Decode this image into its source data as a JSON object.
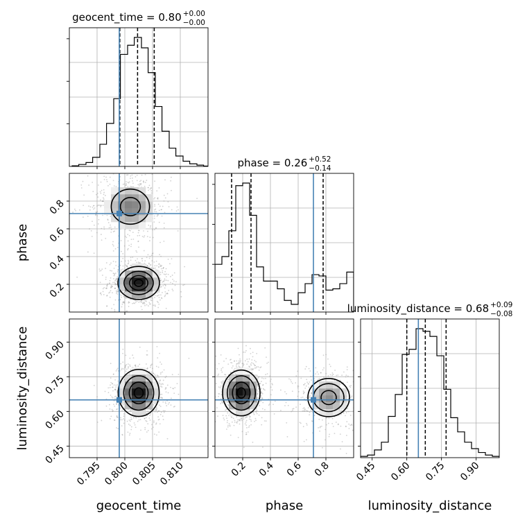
{
  "chart_data": {
    "type": "corner",
    "parameters": [
      "geocent_time",
      "phase",
      "luminosity_distance"
    ],
    "truths": {
      "geocent_time": 0.799,
      "phase": 0.71,
      "luminosity_distance": 0.65
    },
    "axes": {
      "geocent_time": {
        "label": "geocent_time",
        "range": [
          0.79,
          0.815
        ],
        "ticks": [
          "0.795",
          "0.800",
          "0.805",
          "0.810"
        ],
        "tick_values": [
          0.795,
          0.8,
          0.805,
          0.81
        ]
      },
      "phase": {
        "label": "phase",
        "range": [
          0.0,
          1.0
        ],
        "ticks": [
          "0.2",
          "0.4",
          "0.6",
          "0.8"
        ],
        "tick_values": [
          0.2,
          0.4,
          0.6,
          0.8
        ]
      },
      "luminosity_distance": {
        "label": "luminosity_distance",
        "range": [
          0.4,
          1.0
        ],
        "ticks": [
          "0.45",
          "0.60",
          "0.75",
          "0.90"
        ],
        "tick_values": [
          0.45,
          0.6,
          0.75,
          0.9
        ]
      }
    },
    "marginals": [
      {
        "parameter": "geocent_time",
        "title": {
          "name": "geocent_time",
          "median": "0.80",
          "plus": "+0.00",
          "minus": "−0.00"
        },
        "quantiles": [
          0.7991,
          0.8023,
          0.8053
        ],
        "bin_edges": [
          0.7905,
          0.7917,
          0.793,
          0.7942,
          0.7955,
          0.7967,
          0.798,
          0.7992,
          0.8005,
          0.8017,
          0.803,
          0.8042,
          0.8055,
          0.8067,
          0.808,
          0.8092,
          0.8105,
          0.8117,
          0.813,
          0.8142,
          0.815
        ],
        "counts": [
          0.005,
          0.015,
          0.03,
          0.07,
          0.17,
          0.33,
          0.52,
          0.86,
          0.93,
          0.99,
          0.91,
          0.72,
          0.46,
          0.27,
          0.14,
          0.08,
          0.04,
          0.02,
          0.01,
          0.003
        ]
      },
      {
        "parameter": "phase",
        "title": {
          "name": "phase",
          "median": "0.26",
          "plus": "+0.52",
          "minus": "−0.14"
        },
        "quantiles": [
          0.12,
          0.26,
          0.78
        ],
        "bin_edges": [
          0.0,
          0.05,
          0.1,
          0.15,
          0.2,
          0.25,
          0.3,
          0.35,
          0.4,
          0.45,
          0.5,
          0.55,
          0.6,
          0.65,
          0.7,
          0.75,
          0.8,
          0.85,
          0.9,
          0.95,
          1.0
        ],
        "counts": [
          0.37,
          0.43,
          0.63,
          0.98,
          1.0,
          0.75,
          0.35,
          0.24,
          0.24,
          0.18,
          0.09,
          0.06,
          0.15,
          0.22,
          0.29,
          0.28,
          0.17,
          0.18,
          0.22,
          0.31
        ]
      },
      {
        "parameter": "luminosity_distance",
        "title": {
          "name": "luminosity_distance",
          "median": "0.68",
          "plus": "+0.09",
          "minus": "−0.08"
        },
        "quantiles": [
          0.6,
          0.68,
          0.77
        ],
        "bin_edges": [
          0.4,
          0.43,
          0.46,
          0.49,
          0.52,
          0.55,
          0.58,
          0.61,
          0.64,
          0.67,
          0.7,
          0.73,
          0.76,
          0.79,
          0.82,
          0.85,
          0.88,
          0.91,
          0.94,
          0.97,
          1.0
        ],
        "counts": [
          0.01,
          0.02,
          0.06,
          0.12,
          0.32,
          0.49,
          0.8,
          0.84,
          1.0,
          0.98,
          0.94,
          0.79,
          0.53,
          0.31,
          0.2,
          0.12,
          0.07,
          0.04,
          0.02,
          0.01
        ]
      }
    ],
    "joint": [
      {
        "x": "geocent_time",
        "y": "phase",
        "modes": [
          {
            "mx": 0.8025,
            "my": 0.21,
            "sx": 0.0022,
            "sy": 0.07,
            "w": 1.0,
            "levels": [
              0.35,
              0.75,
              1.2,
              1.7
            ]
          },
          {
            "mx": 0.801,
            "my": 0.76,
            "sx": 0.003,
            "sy": 0.11,
            "w": 0.6,
            "levels": [
              0.6,
              1.15
            ]
          }
        ]
      },
      {
        "x": "geocent_time",
        "y": "luminosity_distance",
        "modes": [
          {
            "mx": 0.8025,
            "my": 0.68,
            "sx": 0.002,
            "sy": 0.055,
            "w": 1.0,
            "levels": [
              0.4,
              0.85,
              1.35,
              1.85
            ]
          }
        ]
      },
      {
        "x": "phase",
        "y": "luminosity_distance",
        "modes": [
          {
            "mx": 0.19,
            "my": 0.68,
            "sx": 0.075,
            "sy": 0.055,
            "w": 1.0,
            "levels": [
              0.4,
              0.85,
              1.35,
              1.8
            ]
          },
          {
            "mx": 0.82,
            "my": 0.66,
            "sx": 0.1,
            "sy": 0.055,
            "w": 0.55,
            "levels": [
              0.55,
              1.1,
              1.5
            ]
          }
        ]
      }
    ],
    "grid": true,
    "colors": {
      "truth": "#4682b4",
      "hist": "#000000",
      "points": "#9a9a9a"
    }
  }
}
